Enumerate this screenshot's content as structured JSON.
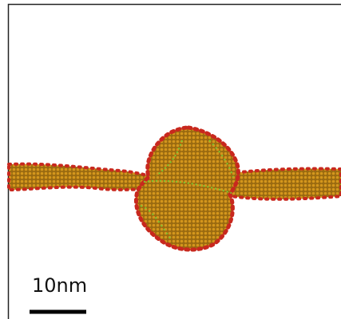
{
  "scale_bar": {
    "label": "10nm"
  }
}
